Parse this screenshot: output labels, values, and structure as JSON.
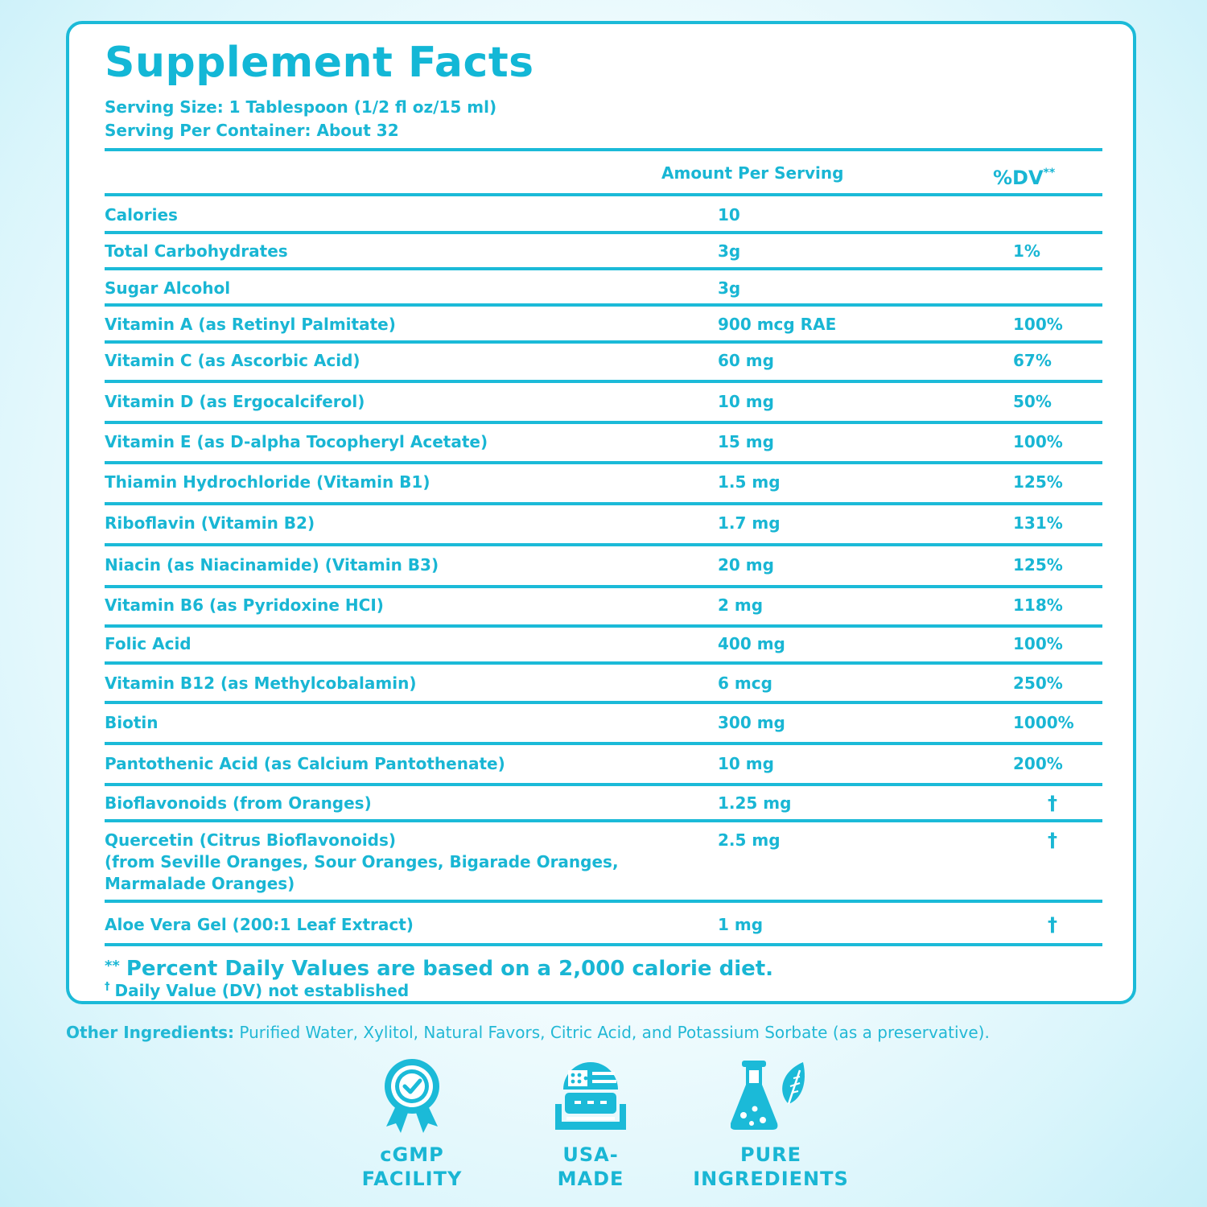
{
  "header": {
    "title": "Supplement Facts",
    "serving_size": "Serving Size: 1 Tablespoon (1/2 fl oz/15 ml)",
    "servings_per_container": "Serving Per Container: About 32"
  },
  "columns": {
    "amount": "Amount Per Serving",
    "dv": "%DV",
    "dv_marker": "**"
  },
  "nutrients": [
    {
      "name": "Calories",
      "amount": "10",
      "dv": ""
    },
    {
      "name": "Total Carbohydrates",
      "amount": "3g",
      "dv": "1%"
    },
    {
      "name": "Sugar Alcohol",
      "amount": "3g",
      "dv": ""
    },
    {
      "name": "Vitamin A (as Retinyl Palmitate)",
      "amount": "900 mcg RAE",
      "dv": "100%"
    },
    {
      "name": "Vitamin C (as Ascorbic Acid)",
      "amount": "60 mg",
      "dv": "67%"
    },
    {
      "name": "Vitamin D (as Ergocalciferol)",
      "amount": "10 mg",
      "dv": "50%"
    },
    {
      "name": "Vitamin E (as D-alpha Tocopheryl Acetate)",
      "amount": "15 mg",
      "dv": "100%"
    },
    {
      "name": "Thiamin Hydrochloride (Vitamin B1)",
      "amount": "1.5 mg",
      "dv": "125%"
    },
    {
      "name": "Riboflavin (Vitamin B2)",
      "amount": "1.7 mg",
      "dv": "131%"
    },
    {
      "name": "Niacin (as Niacinamide) (Vitamin B3)",
      "amount": "20 mg",
      "dv": "125%"
    },
    {
      "name": "Vitamin B6 (as Pyridoxine HCI)",
      "amount": "2 mg",
      "dv": "118%"
    },
    {
      "name": "Folic Acid",
      "amount": "400 mg",
      "dv": "100%"
    },
    {
      "name": "Vitamin B12 (as Methylcobalamin)",
      "amount": "6 mcg",
      "dv": "250%"
    },
    {
      "name": "Biotin",
      "amount": "300 mg",
      "dv": "1000%"
    },
    {
      "name": "Pantothenic Acid (as Calcium Pantothenate)",
      "amount": "10 mg",
      "dv": "200%"
    },
    {
      "name": "Bioflavonoids (from Oranges)",
      "amount": "1.25 mg",
      "dv": "†"
    },
    {
      "name": "Quercetin (Citrus Bioflavonoids)\n(from Seville Oranges, Sour Oranges, Bigarade Oranges,\nMarmalade Oranges)",
      "amount": "2.5 mg",
      "dv": "†"
    },
    {
      "name": "Aloe Vera Gel (200:1 Leaf Extract)",
      "amount": "1 mg",
      "dv": "†"
    }
  ],
  "footnotes": {
    "dv_stars": "**",
    "dv_note": "Percent Daily Values are based on a 2,000 calorie diet.",
    "dagger": "†",
    "dagger_note": "Daily Value (DV) not established"
  },
  "other_ingredients": {
    "label": "Other Ingredients:",
    "text": "Purified Water, Xylitol, Natural Favors, Citric Acid, and Potassium Sorbate (as a preservative)."
  },
  "badges": [
    {
      "icon": "certified-seal-icon",
      "label": "cGMP\nFACILITY"
    },
    {
      "icon": "usa-flag-icon",
      "label": "USA-\nMADE"
    },
    {
      "icon": "flask-leaf-icon",
      "label": "PURE\nINGREDIENTS"
    }
  ],
  "colors": {
    "accent": "#1bbad8",
    "text": "#19b6d4",
    "background": "#dff6fb"
  }
}
